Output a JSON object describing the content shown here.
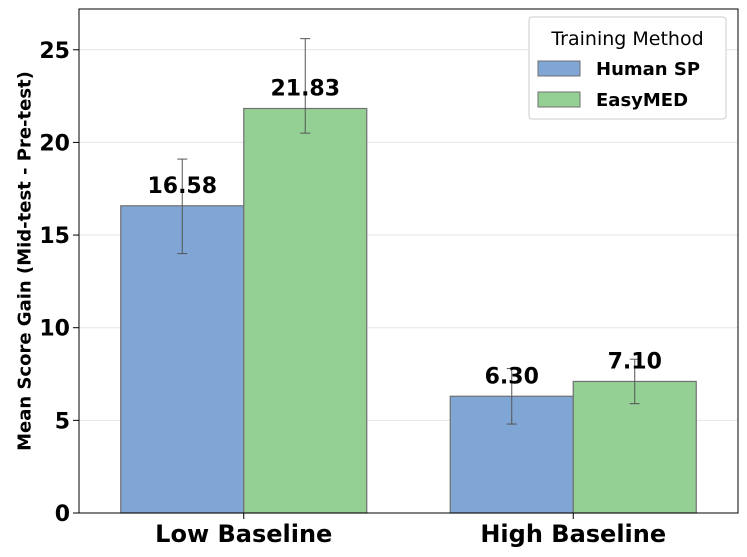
{
  "chart_data": {
    "type": "bar",
    "categories": [
      "Low Baseline",
      "High Baseline"
    ],
    "series": [
      {
        "name": "Human SP",
        "values": [
          16.58,
          6.3
        ],
        "labels": [
          "16.58",
          "6.30"
        ],
        "error": [
          [
            14.0,
            19.1
          ],
          [
            4.8,
            7.8
          ]
        ],
        "color": "#7fa6d4"
      },
      {
        "name": "EasyMED",
        "values": [
          21.83,
          7.1
        ],
        "labels": [
          "21.83",
          "7.10"
        ],
        "error": [
          [
            20.5,
            25.6
          ],
          [
            5.9,
            8.3
          ]
        ],
        "color": "#94d094"
      }
    ],
    "ylabel": "Mean Score Gain (Mid-test - Pre-test)",
    "ylim": [
      0,
      27.2
    ],
    "yticks": [
      0,
      5,
      10,
      15,
      20,
      25
    ],
    "grid": "y",
    "legend": {
      "title": "Training Method",
      "placement": "top-right"
    }
  }
}
